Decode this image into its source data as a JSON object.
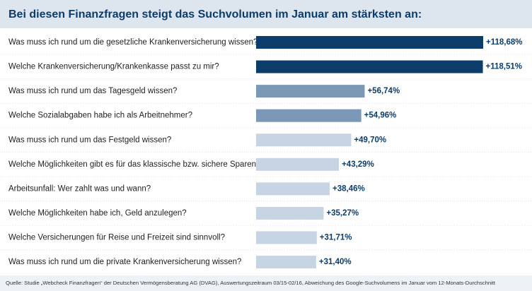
{
  "chart_data": {
    "type": "bar",
    "orientation": "horizontal",
    "title": "Bei diesen Finanzfragen steigt das Suchvolumen im Januar am stärksten an:",
    "categories": [
      "Was muss ich rund um die gesetzliche Krankenversicherung wissen?",
      "Welche Krankenversicherung/Krankenkasse passt zu mir?",
      "Was muss ich rund um das Tagesgeld wissen?",
      "Welche Sozialabgaben habe ich als Arbeitnehmer?",
      "Was muss ich rund um das Festgeld wissen?",
      "Welche Möglichkeiten gibt es für das klassische bzw. sichere Sparen?",
      "Arbeitsunfall: Wer zahlt was und wann?",
      "Welche Möglichkeiten habe ich, Geld anzulegen?",
      "Welche Versicherungen für Reise und Freizeit sind sinnvoll?",
      "Was muss ich rund um die private Krankenversicherung wissen?"
    ],
    "values": [
      118.68,
      118.51,
      56.74,
      54.96,
      49.7,
      43.29,
      38.46,
      35.27,
      31.71,
      31.4
    ],
    "value_labels": [
      "+118,68%",
      "+118,51%",
      "+56,74%",
      "+54,96%",
      "+49,70%",
      "+43,29%",
      "+38,46%",
      "+35,27%",
      "+31,71%",
      "+31,40%"
    ],
    "colors": [
      "#0c3c6a",
      "#0c3c6a",
      "#7b98b7",
      "#7b98b7",
      "#c6d4e4",
      "#c6d4e4",
      "#c6d4e4",
      "#c6d4e4",
      "#c6d4e4",
      "#c6d4e4"
    ],
    "source": "Quelle: Studie „Webcheck Finanzfragen“ der Deutschen Vermögensberatung AG (DVAG), Auswertungszeitraum 03/15-02/16, Abweichung des Google-Suchvolumens im Januar vom 12-Monats-Durchschnitt"
  }
}
